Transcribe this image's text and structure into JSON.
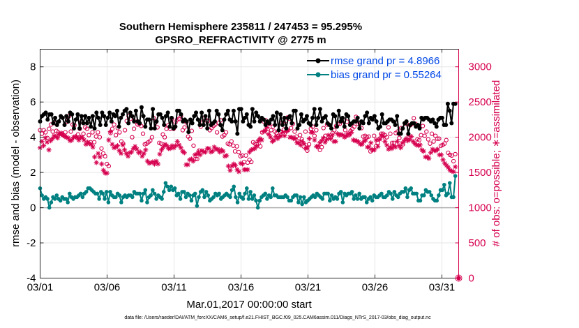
{
  "chart_data": {
    "type": "line",
    "title": "Southern Hemisphere 235811 / 247453 = 95.295%",
    "subtitle": "GPSRO_REFRACTIVITY @ 2775 m",
    "xlabel": "Mar.01,2017 00:00:00 start",
    "ylabel": "rmse and bias (model - observation)",
    "ylabel_right": "# of obs: o=possible; ∗=assimilated",
    "footer": "data file: /Users/raeder/DAI/ATM_forcXX/CAM6_setup/f.e21.FHIST_BGC.f09_025.CAM6assim.011/Diags_NTrS_2017-03/obs_diag_output.nc",
    "xlim": [
      0,
      31.25
    ],
    "ylim": [
      -4,
      9
    ],
    "ylim_right": [
      0,
      3250
    ],
    "xticks": [
      0,
      5,
      10,
      15,
      20,
      25,
      30
    ],
    "xtick_labels": [
      "03/01",
      "03/06",
      "03/11",
      "03/16",
      "03/21",
      "03/26",
      "03/31"
    ],
    "yticks": [
      -4,
      -2,
      0,
      2,
      4,
      6,
      8
    ],
    "ytick_labels": [
      "-4",
      "-2",
      "0",
      "2",
      "4",
      "6",
      "8"
    ],
    "yticks_right": [
      0,
      500,
      1000,
      1500,
      2000,
      2500,
      3000
    ],
    "ytick_labels_right": [
      "0",
      "500",
      "1000",
      "1500",
      "2000",
      "2500",
      "3000"
    ],
    "legend": [
      "rmse grand pr = 4.8966",
      "bias grand pr = 0.55264"
    ],
    "legend_position": "top-right",
    "zero_line": true,
    "grid": true,
    "colors": {
      "rmse": "#000000",
      "bias": "#008080",
      "obs": "#d6004f",
      "zero": "#b0b0b0",
      "legend_text": "#0047e6"
    },
    "series": [
      {
        "name": "rmse",
        "axis": "left",
        "values": [
          4.9,
          5.2,
          5.3,
          5.4,
          5,
          5.3,
          5.3,
          4.8,
          5.1,
          4.7,
          4.9,
          5.2,
          5.1,
          4.7,
          5.2,
          4.9,
          5.4,
          5.3,
          4.5,
          5,
          5.3,
          4.5,
          5.2,
          4.8,
          5.2,
          4.8,
          5.1,
          4.6,
          5.2,
          4.5,
          5.4,
          5.1,
          4.7,
          5.4,
          5.2,
          4.7,
          5.1,
          5.4,
          4.9,
          5.3,
          5.2,
          5.5,
          4.6,
          5.1,
          5.3,
          5.5,
          5.6,
          4.8,
          5.4,
          5.2,
          4.9,
          5.5,
          4.9,
          4.8,
          5.7,
          5.2,
          4.6,
          5,
          5,
          4.5,
          5.6,
          4.5,
          4.9,
          5.3,
          5.3,
          5.1,
          4.7,
          5.2,
          5.4,
          4.6,
          5.1,
          4.5,
          4.6,
          5.5,
          5.5,
          5.3,
          4.9,
          5,
          4.9,
          4.3,
          5,
          4.8,
          5.2,
          5.4,
          5,
          4.7,
          5.4,
          4.7,
          5.2,
          4.5,
          5.5,
          4.7,
          4.8,
          4.9,
          5.5,
          5.3,
          4.7,
          4.4,
          5,
          5.3,
          5.5,
          5,
          4.9,
          5.5,
          4.9,
          4.2,
          5.6,
          5.6,
          4.9,
          5.1,
          5.3,
          4.7,
          4.6,
          5.6,
          4.9,
          5.4,
          5.2,
          4.9,
          5.1,
          5,
          4.7,
          4.9,
          4.8,
          5,
          5.2,
          4.7,
          5.4,
          4.4,
          5.3,
          4.7,
          5.1,
          4.5,
          5.1,
          5.2,
          4.8,
          5.5,
          5.5,
          4.5,
          4.7,
          5.3,
          4.9,
          5,
          5.2,
          4.8,
          4.7,
          5.1,
          5.6,
          4.7,
          5.1,
          5.6,
          4.9,
          5.1,
          5.2,
          4.8,
          4.7,
          4.5,
          5.3,
          5.2,
          4.6,
          5.5,
          4.9,
          5.1,
          4.6,
          5.3,
          5.2,
          4.7,
          4.8,
          4.9,
          4.9,
          5.1,
          4.5,
          4.9,
          4.8,
          5.2,
          5.4,
          4.8,
          5.1,
          5,
          5.2,
          4.9,
          4.5,
          4.6,
          5.3,
          4.8,
          4.8,
          4.9,
          5,
          5,
          4.9,
          4.7,
          5.2,
          4.2,
          4.2,
          4.5,
          4.8,
          4.9,
          4.2,
          4.7,
          4.8,
          4.8,
          4.6,
          4.7,
          4.5,
          5.1,
          5,
          5.1,
          5.1,
          5,
          4.9,
          5,
          4.8,
          4.6,
          5,
          5.1,
          5.1,
          4.7,
          4.7,
          5.9,
          5.5,
          4.8,
          5.9,
          5.9
        ]
      },
      {
        "name": "bias",
        "axis": "left",
        "values": [
          1.1,
          0.7,
          0.5,
          0.6,
          0.5,
          0,
          0.3,
          0.6,
          0.5,
          0.7,
          0.5,
          0.4,
          0.6,
          0.5,
          0.5,
          0.3,
          0.8,
          0.6,
          0.5,
          0.6,
          0.6,
          0.7,
          0.8,
          0.6,
          0.8,
          0.9,
          1.1,
          1.1,
          1,
          0.9,
          0.8,
          0.8,
          0.5,
          0.9,
          0.8,
          0.5,
          0.9,
          0.3,
          0.9,
          0.7,
          0.6,
          0.6,
          0.8,
          0.7,
          0.3,
          0.6,
          0.7,
          0.6,
          0.7,
          0.7,
          0.6,
          0.9,
          0.8,
          0.8,
          0.8,
          0.4,
          0.8,
          1,
          0.3,
          0.6,
          0.7,
          1,
          0.8,
          0.5,
          0.7,
          0.6,
          0.5,
          0.9,
          1.4,
          1.2,
          1,
          1.2,
          1,
          1.1,
          0.7,
          0.8,
          0.5,
          0.9,
          0.9,
          0.6,
          0.8,
          0.7,
          0.4,
          0.7,
          0.8,
          0.1,
          0.6,
          0.9,
          1,
          0.6,
          0.9,
          0.7,
          0.4,
          0.5,
          0.6,
          0.8,
          0.7,
          0.8,
          0.5,
          0.6,
          0.7,
          0.8,
          0.7,
          0.6,
          1,
          1.2,
          0.6,
          0.3,
          0.8,
          0.6,
          0.5,
          0.8,
          1.1,
          0.5,
          0.9,
          0.5,
          0.7,
          0.4,
          0,
          0.4,
          0.6,
          0.7,
          0.8,
          0.5,
          0.7,
          0.6,
          1.1,
          0.7,
          0.7,
          0.6,
          0.6,
          0.6,
          0.6,
          0.7,
          0.6,
          0.4,
          0.4,
          0.6,
          0.7,
          0.7,
          0.3,
          0.6,
          0.2,
          0.6,
          0.3,
          0.4,
          0.5,
          0.6,
          0.7,
          0.6,
          0.8,
          0.7,
          0.6,
          0.5,
          0.8,
          0.8,
          0.8,
          0.4,
          0.7,
          0.5,
          0.6,
          0.5,
          0.8,
          0.9,
          0.3,
          0.8,
          0.7,
          0.8,
          0.8,
          0.9,
          0.5,
          0.7,
          0.5,
          0.8,
          0.5,
          0.6,
          0.6,
          0.3,
          0.5,
          0.6,
          0.4,
          0.7,
          0.6,
          0.6,
          0.7,
          0.8,
          0.6,
          0.6,
          0.7,
          0.9,
          0.8,
          0.5,
          0.9,
          0.7,
          0.6,
          0.8,
          0.9,
          0.9,
          1.1,
          0.6,
          1,
          1.1,
          0.8,
          0.8,
          0.8,
          0.4,
          0.4,
          0.7,
          0.7,
          1,
          0.9,
          0.9,
          0.7,
          0.5,
          0.4,
          0.4,
          0.7,
          1,
          1,
          1.3,
          0.7,
          0.8,
          1.4,
          0.6,
          0.6,
          1.8
        ]
      },
      {
        "name": "possible",
        "axis": "right",
        "values": [
          2100,
          2050,
          2100,
          2070,
          1990,
          2120,
          2180,
          2080,
          2200,
          2090,
          2070,
          2050,
          2050,
          2030,
          2070,
          2220,
          2300,
          2080,
          2180,
          2170,
          2000,
          2040,
          2120,
          2220,
          2050,
          2140,
          2120,
          2030,
          1930,
          2070,
          1930,
          2010,
          2070,
          2000,
          1840,
          1770,
          1730,
          1620,
          1590,
          2060,
          2120,
          2180,
          2030,
          2130,
          2070,
          1940,
          1910,
          2100,
          2230,
          2300,
          2260,
          2000,
          2120,
          2220,
          2180,
          2190,
          2160,
          2050,
          1900,
          1910,
          1930,
          1950,
          2000,
          2270,
          2210,
          2140,
          1920,
          1910,
          2040,
          2000,
          2120,
          2170,
          2120,
          2260,
          2120,
          2210,
          2250,
          2260,
          2300,
          2100,
          2140,
          2210,
          2010,
          1980,
          2090,
          1880,
          1690,
          1690,
          1810,
          2150,
          2210,
          2270,
          2240,
          2230,
          2100,
          2130,
          2160,
          2180,
          2070,
          2200,
          2240,
          2010,
          2030,
          2070,
          1910,
          1900,
          1940,
          1880,
          1800,
          1870,
          1790,
          1730,
          1740,
          1650,
          1740,
          1640,
          1680,
          1650,
          1930,
          1910,
          1900,
          1910,
          1870,
          2070,
          2220,
          2240,
          2070,
          2190,
          2100,
          2150,
          2080,
          2060,
          2020,
          2080,
          2200,
          2110,
          2230,
          2280,
          2260,
          2130,
          2190,
          2080,
          2010,
          1940,
          2030,
          1970,
          1870,
          2080,
          1810,
          1900,
          2120,
          2150,
          2020,
          2100,
          1860,
          1820,
          1860,
          2130,
          2020,
          2180,
          2180,
          2000,
          2060,
          2100,
          2160,
          2190,
          2190,
          2230,
          2240,
          2100,
          2220,
          2030,
          2090,
          2120,
          2150,
          2290,
          2190,
          2200,
          2130,
          2010,
          2020,
          2000,
          2010,
          1800,
          1820,
          2020,
          1870,
          1920,
          1980,
          2050,
          2050,
          2030,
          2000,
          2140,
          2050,
          1920,
          1920,
          2060,
          2080,
          1990,
          2130,
          1900,
          2200,
          2190,
          2040,
          2170,
          2190,
          2270,
          2190,
          1970,
          1960,
          2030,
          2160,
          2020,
          2080,
          1970,
          1910,
          2050,
          1940,
          2020,
          1980,
          1980,
          1880,
          1890,
          1910,
          1960,
          1780,
          1750,
          1740,
          1660,
          1760
        ]
      },
      {
        "name": "assimilated",
        "axis": "right",
        "values": [
          1850,
          1940,
          1880,
          1990,
          1930,
          1820,
          1950,
          1980,
          2020,
          2010,
          1990,
          2040,
          2060,
          2030,
          2010,
          2000,
          1990,
          1950,
          1960,
          2000,
          2010,
          2000,
          1960,
          2000,
          2000,
          1960,
          1900,
          1930,
          1910,
          1900,
          1860,
          1720,
          1640,
          1770,
          1720,
          1620,
          1530,
          1490,
          1490,
          1960,
          2080,
          1900,
          1850,
          1860,
          1880,
          1810,
          1770,
          1890,
          1820,
          1770,
          1730,
          1780,
          1790,
          1840,
          1870,
          1830,
          1780,
          1790,
          1730,
          1770,
          1820,
          1660,
          1630,
          1640,
          1650,
          1620,
          1660,
          1620,
          1760,
          1820,
          1860,
          1900,
          1880,
          1840,
          1840,
          1880,
          1850,
          1880,
          1940,
          1890,
          1850,
          1800,
          1780,
          1610,
          1610,
          1680,
          1690,
          1660,
          1750,
          1760,
          1790,
          1750,
          1810,
          1790,
          1790,
          1840,
          1840,
          1790,
          1800,
          1860,
          1830,
          1830,
          1790,
          1820,
          1800,
          1730,
          1740,
          1590,
          1530,
          1590,
          1620,
          1600,
          1540,
          1510,
          1630,
          1620,
          1540,
          1540,
          1540,
          1790,
          1820,
          1830,
          1840,
          1870,
          1950,
          1980,
          1960,
          2080,
          2100,
          2140,
          2040,
          2000,
          1940,
          1960,
          2010,
          1980,
          2010,
          2020,
          2070,
          2020,
          2080,
          2100,
          2000,
          2000,
          1980,
          1980,
          1920,
          1920,
          1890,
          1940,
          1910,
          1840,
          1860,
          1980,
          2070,
          2070,
          1960,
          1870,
          1870,
          1920,
          1950,
          1990,
          1930,
          1970,
          2030,
          1980,
          2030,
          1940,
          1940,
          2050,
          2030,
          2040,
          2030,
          2000,
          2020,
          2050,
          2040,
          2070,
          1960,
          1950,
          1950,
          1930,
          1900,
          1900,
          1940,
          1960,
          1860,
          1860,
          1920,
          1820,
          1820,
          1960,
          1870,
          1970,
          2030,
          2010,
          1940,
          1890,
          1830,
          1860,
          1840,
          1880,
          1860,
          1940,
          1880,
          1850,
          1920,
          1950,
          1980,
          1950,
          1970,
          2010,
          1940,
          1910,
          1890,
          1880,
          1890,
          1820,
          1800,
          1720,
          1720,
          1700,
          1780,
          1830,
          1810,
          1810,
          1830,
          1750,
          1750,
          1680,
          1630,
          1600,
          1570,
          1530,
          1520,
          1510,
          1580
        ]
      }
    ],
    "outlier_point": {
      "x": 31.25,
      "value": 0,
      "label": "0"
    }
  }
}
